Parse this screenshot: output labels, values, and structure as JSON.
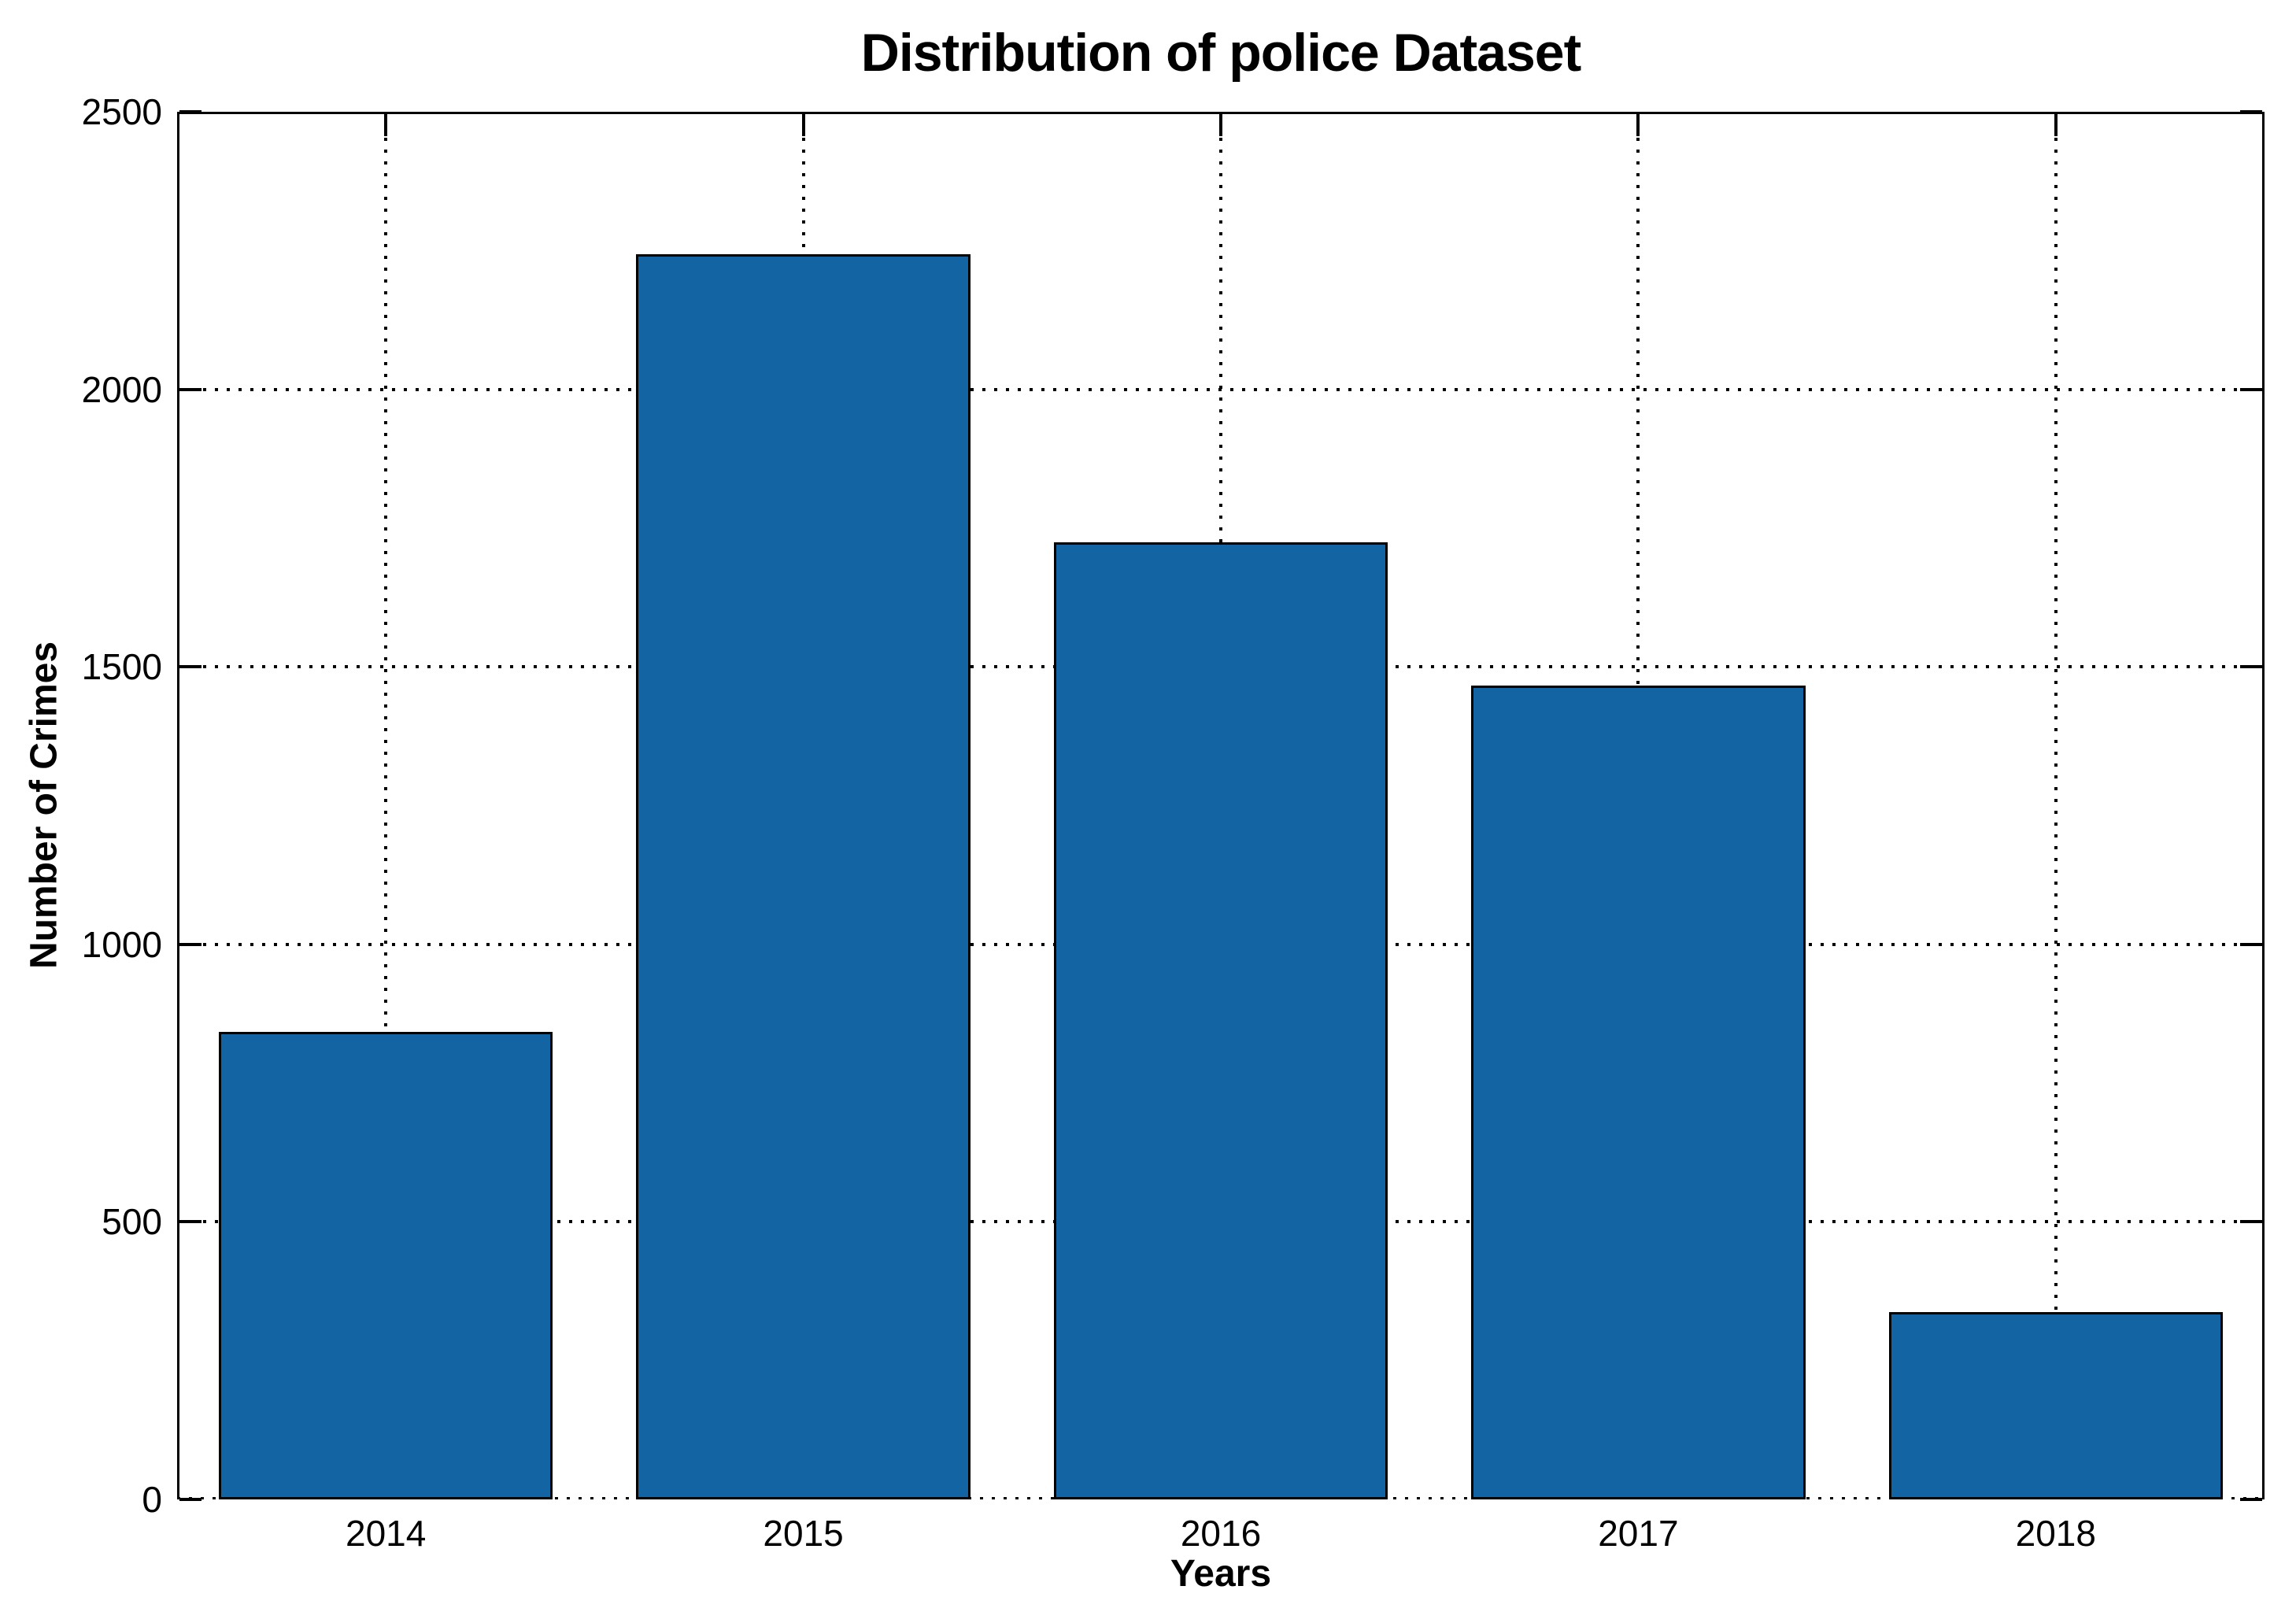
{
  "figure": {
    "background": "#ffffff"
  },
  "chart_data": {
    "type": "bar",
    "title": "Distribution of police Dataset",
    "xlabel": "Years",
    "ylabel": "Number of Crimes",
    "categories": [
      "2014",
      "2015",
      "2016",
      "2017",
      "2018"
    ],
    "values": [
      843,
      2243,
      1724,
      1466,
      338
    ],
    "ylim": [
      0,
      2500
    ],
    "yticks": [
      0,
      500,
      1000,
      1500,
      2000,
      2500
    ],
    "grid": true,
    "grid_style": "dotted",
    "legend": "none",
    "bar_color": "#1265a2",
    "bar_edge_color": "#000000",
    "axis_color": "#000000",
    "bar_width_frac": 0.8
  }
}
